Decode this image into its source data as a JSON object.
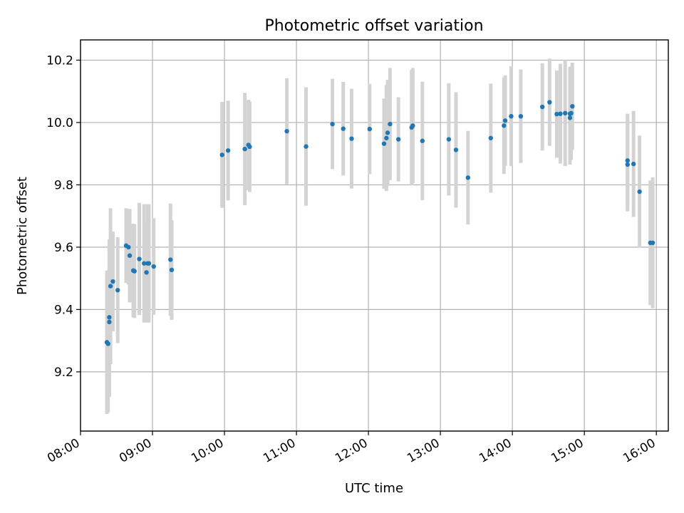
{
  "chart_data": {
    "type": "scatter",
    "title": "Photometric offset variation",
    "xlabel": "UTC time",
    "ylabel": "Photometric offset",
    "x_ticks": [
      "08:00",
      "09:00",
      "10:00",
      "11:00",
      "12:00",
      "13:00",
      "14:00",
      "15:00",
      "16:00"
    ],
    "y_ticks": [
      "9.2",
      "9.4",
      "9.6",
      "9.8",
      "10.0",
      "10.2"
    ],
    "xlim": [
      "08:00",
      "16:10"
    ],
    "ylim": [
      9.01,
      10.265
    ],
    "grid": true,
    "marker_color": "#1f77b4",
    "errorbar_color": "#d3d3d3",
    "series": [
      {
        "x": [
          "08:22",
          "08:23",
          "08:24",
          "08:24",
          "08:25",
          "08:27",
          "08:31",
          "08:38",
          "08:40",
          "08:41",
          "08:44",
          "08:45",
          "08:49",
          "08:53",
          "08:55",
          "08:56",
          "08:57",
          "09:01",
          "09:15",
          "09:16",
          "09:58",
          "10:03",
          "10:17",
          "10:20",
          "10:21",
          "10:52",
          "11:08",
          "11:30",
          "11:39",
          "11:46",
          "12:01",
          "12:13",
          "12:15",
          "12:16",
          "12:18",
          "12:25",
          "12:36",
          "12:37",
          "12:45",
          "13:07",
          "13:13",
          "13:23",
          "13:42",
          "13:53",
          "13:54",
          "13:59",
          "14:07",
          "14:25",
          "14:31",
          "14:37",
          "14:40",
          "14:44",
          "14:48",
          "14:48",
          "14:49",
          "14:50",
          "15:36",
          "15:36",
          "15:41",
          "15:46",
          "15:55",
          "15:57"
        ],
        "y": [
          9.295,
          9.29,
          9.36,
          9.375,
          9.475,
          9.49,
          9.462,
          9.605,
          9.6,
          9.573,
          9.525,
          9.523,
          9.562,
          9.548,
          9.519,
          9.548,
          9.548,
          9.538,
          9.56,
          9.527,
          9.896,
          9.91,
          9.915,
          9.928,
          9.922,
          9.972,
          9.923,
          9.995,
          9.98,
          9.948,
          9.979,
          9.932,
          9.95,
          9.967,
          9.995,
          9.946,
          9.984,
          9.99,
          9.941,
          9.946,
          9.912,
          9.823,
          9.95,
          9.99,
          10.006,
          10.02,
          10.02,
          10.05,
          10.065,
          10.027,
          10.028,
          10.03,
          10.028,
          10.015,
          10.03,
          10.052,
          9.878,
          9.865,
          9.867,
          9.778,
          9.614,
          9.614
        ],
        "yerr": [
          0.23,
          0.22,
          0.24,
          0.25,
          0.25,
          0.16,
          0.17,
          0.12,
          0.12,
          0.15,
          0.15,
          0.15,
          0.18,
          0.19,
          0.16,
          0.19,
          0.19,
          0.155,
          0.18,
          0.16,
          0.17,
          0.16,
          0.18,
          0.145,
          0.145,
          0.17,
          0.19,
          0.145,
          0.15,
          0.16,
          0.145,
          0.145,
          0.17,
          0.17,
          0.18,
          0.135,
          0.185,
          0.185,
          0.19,
          0.18,
          0.185,
          0.15,
          0.175,
          0.155,
          0.145,
          0.16,
          0.15,
          0.14,
          0.14,
          0.14,
          0.16,
          0.17,
          0.15,
          0.15,
          0.15,
          0.14,
          0.15,
          0.15,
          0.17,
          0.18,
          0.2,
          0.21
        ]
      }
    ]
  }
}
